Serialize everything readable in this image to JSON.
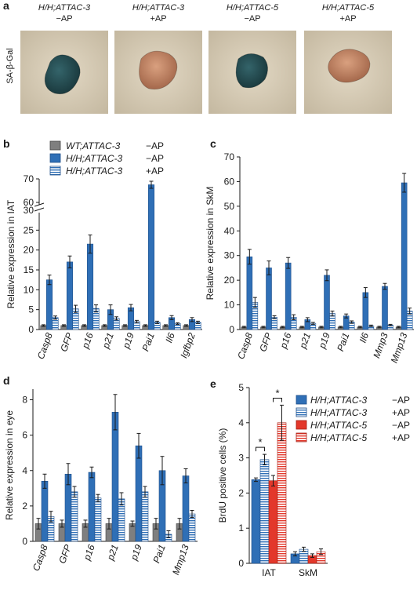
{
  "colors": {
    "wt": "#7f7f7f",
    "dark_blue": "#2f6fb6",
    "light_blue": "#9ec3ea",
    "red": "#e3382b",
    "light_red": "#f08a80",
    "axis": "#1a1a1a"
  },
  "panel_a": {
    "label": "a",
    "row_label": "SA-β-Gal",
    "images": [
      {
        "title": "H/H;ATTAC-3",
        "subtitle": "−AP",
        "stain": "blue"
      },
      {
        "title": "H/H;ATTAC-3",
        "subtitle": "+AP",
        "stain": "brown"
      },
      {
        "title": "H/H;ATTAC-5",
        "subtitle": "−AP",
        "stain": "blue"
      },
      {
        "title": "H/H;ATTAC-5",
        "subtitle": "+AP",
        "stain": "brown"
      }
    ]
  },
  "legend_bd": [
    {
      "name": "WT;ATTAC-3",
      "suffix": "−AP",
      "style": "wt"
    },
    {
      "name": "H/H;ATTAC-3",
      "suffix": "−AP",
      "style": "blue"
    },
    {
      "name": "H/H;ATTAC-3",
      "suffix": "+AP",
      "style": "blue_striped"
    }
  ],
  "legend_e": [
    {
      "name": "H/H;ATTAC-3",
      "suffix": "−AP",
      "style": "blue"
    },
    {
      "name": "H/H;ATTAC-3",
      "suffix": "+AP",
      "style": "blue_striped"
    },
    {
      "name": "H/H;ATTAC-5",
      "suffix": "−AP",
      "style": "red"
    },
    {
      "name": "H/H;ATTAC-5",
      "suffix": "+AP",
      "style": "red_striped"
    }
  ],
  "chart_data": [
    {
      "panel": "b",
      "type": "bar",
      "ylabel": "Relative expression in IAT",
      "axis_break": true,
      "lower_ticks": [
        0,
        5,
        10,
        15,
        20,
        25,
        30
      ],
      "upper_ticks": [
        60,
        70
      ],
      "categories": [
        "Casp8",
        "GFP",
        "p16",
        "p21",
        "p19",
        "Pai1",
        "Il6",
        "Igfbp2"
      ],
      "series": [
        {
          "name": "WT;ATTAC-3 −AP",
          "style": "wt",
          "values": [
            1,
            1,
            1,
            1,
            1,
            1,
            1,
            1
          ],
          "errors": [
            0.2,
            0.2,
            0.2,
            0.2,
            0.2,
            0.2,
            0.2,
            0.2
          ]
        },
        {
          "name": "H/H;ATTAC-3 −AP",
          "style": "blue",
          "values": [
            12.5,
            17,
            21.5,
            5,
            5.5,
            67.5,
            3,
            2.5
          ],
          "errors": [
            1.2,
            1.5,
            2.3,
            1.2,
            0.8,
            1.5,
            0.5,
            0.5
          ]
        },
        {
          "name": "H/H;ATTAC-3 +AP",
          "style": "blue_striped",
          "values": [
            3,
            5.2,
            5.3,
            2.8,
            2,
            1.8,
            1.5,
            1.8
          ],
          "errors": [
            0.4,
            0.9,
            0.9,
            0.4,
            0.3,
            0.3,
            0.2,
            0.3
          ]
        }
      ]
    },
    {
      "panel": "c",
      "type": "bar",
      "ylabel": "Relative expression in SkM",
      "ylim": [
        0,
        70
      ],
      "ticks": [
        0,
        10,
        20,
        30,
        40,
        50,
        60,
        70
      ],
      "categories": [
        "Casp8",
        "GFP",
        "p16",
        "p21",
        "p19",
        "Pai1",
        "Il6",
        "Mmp3",
        "Mmp13"
      ],
      "series": [
        {
          "name": "WT;ATTAC-3 −AP",
          "style": "wt",
          "values": [
            1,
            1,
            1,
            1,
            1,
            1,
            1,
            1,
            1
          ],
          "errors": [
            0.3,
            0.3,
            0.3,
            0.3,
            0.3,
            0.3,
            0.3,
            0.3,
            0.3
          ]
        },
        {
          "name": "H/H;ATTAC-3 −AP",
          "style": "blue",
          "values": [
            29.5,
            25,
            27,
            4,
            22,
            5.5,
            15,
            17.5,
            59.5
          ],
          "errors": [
            3,
            2.8,
            2.2,
            0.8,
            2.2,
            0.8,
            2,
            1.2,
            3.8
          ]
        },
        {
          "name": "H/H;ATTAC-3 +AP",
          "style": "blue_striped",
          "values": [
            11,
            5,
            5,
            2.5,
            6.5,
            3,
            1.5,
            1.8,
            7.5
          ],
          "errors": [
            2,
            0.6,
            1,
            0.4,
            1,
            0.5,
            0.3,
            0.3,
            1.2
          ]
        }
      ]
    },
    {
      "panel": "d",
      "type": "bar",
      "ylabel": "Relative expression in eye",
      "ylim": [
        0,
        8.6
      ],
      "ticks": [
        0,
        2,
        4,
        6,
        8
      ],
      "categories": [
        "Casp8",
        "GFP",
        "p16",
        "p21",
        "p19",
        "Pai1",
        "Mmp13"
      ],
      "series": [
        {
          "name": "WT;ATTAC-3 −AP",
          "style": "wt",
          "values": [
            1,
            1,
            1,
            1,
            1,
            1,
            1
          ],
          "errors": [
            0.3,
            0.2,
            0.2,
            0.3,
            0.15,
            0.3,
            0.3
          ]
        },
        {
          "name": "H/H;ATTAC-3 −AP",
          "style": "blue",
          "values": [
            3.4,
            3.8,
            3.9,
            7.3,
            5.4,
            4,
            3.7
          ],
          "errors": [
            0.4,
            0.6,
            0.3,
            1,
            0.7,
            0.8,
            0.4
          ]
        },
        {
          "name": "H/H;ATTAC-3 +AP",
          "style": "blue_striped",
          "values": [
            1.4,
            2.8,
            2.45,
            2.4,
            2.8,
            0.4,
            1.55
          ],
          "errors": [
            0.3,
            0.3,
            0.2,
            0.35,
            0.3,
            0.2,
            0.2
          ]
        }
      ]
    },
    {
      "panel": "e",
      "type": "bar",
      "ylabel": "BrdU positive cells (%)",
      "ylim": [
        0,
        5
      ],
      "ticks": [
        0,
        1,
        2,
        3,
        4,
        5
      ],
      "categories": [
        "IAT",
        "SkM"
      ],
      "annotations": [
        "*",
        "*"
      ],
      "series": [
        {
          "name": "H/H;ATTAC-3 −AP",
          "style": "blue",
          "values": [
            2.38,
            0.27
          ],
          "errors": [
            0.05,
            0.06
          ]
        },
        {
          "name": "H/H;ATTAC-3 +AP",
          "style": "blue_striped",
          "values": [
            2.95,
            0.4
          ],
          "errors": [
            0.15,
            0.06
          ]
        },
        {
          "name": "H/H;ATTAC-5 −AP",
          "style": "red",
          "values": [
            2.35,
            0.22
          ],
          "errors": [
            0.15,
            0.05
          ]
        },
        {
          "name": "H/H;ATTAC-5 +AP",
          "style": "red_striped",
          "values": [
            4,
            0.33
          ],
          "errors": [
            0.5,
            0.08
          ]
        }
      ]
    }
  ]
}
